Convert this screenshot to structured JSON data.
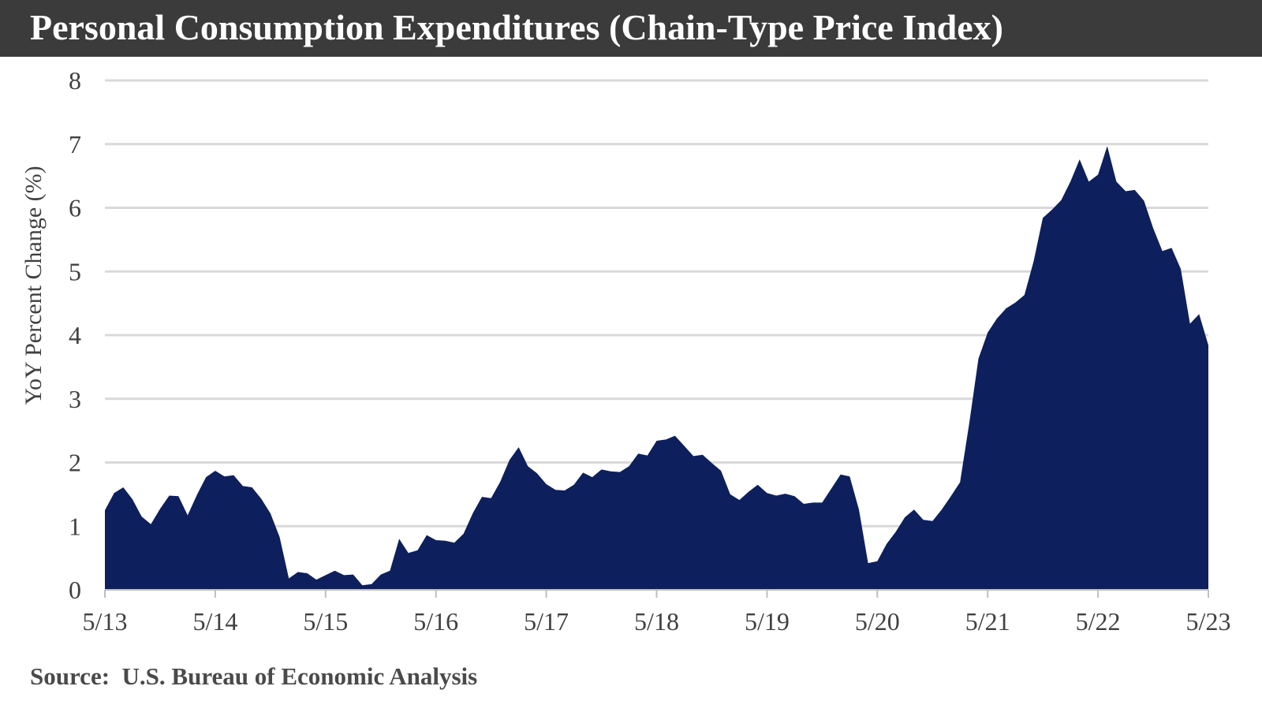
{
  "header": {
    "title": "Personal Consumption Expenditures (Chain-Type Price Index)"
  },
  "footer": {
    "source": "Source:  U.S. Bureau of Economic Analysis"
  },
  "colors": {
    "title_bar": "#3b3b3b",
    "area_fill": "#0d1f5c",
    "grid": "#d9d9d9",
    "text": "#404040"
  },
  "chart_data": {
    "type": "area",
    "title": "Personal Consumption Expenditures (Chain-Type Price Index)",
    "xlabel": "",
    "ylabel": "YoY Percent Change (%)",
    "ylim": [
      0,
      8
    ],
    "yticks": [
      0,
      1,
      2,
      3,
      4,
      5,
      6,
      7,
      8
    ],
    "xlim": [
      "2013-05",
      "2023-05"
    ],
    "xticks": [
      "5/13",
      "5/14",
      "5/15",
      "5/16",
      "5/17",
      "5/18",
      "5/19",
      "5/20",
      "5/21",
      "5/22",
      "5/23"
    ],
    "grid": true,
    "legend": "none",
    "series": [
      {
        "x": [
          "2013-05",
          "2013-06",
          "2013-07",
          "2013-08",
          "2013-09",
          "2013-10",
          "2013-11",
          "2013-12",
          "2014-01",
          "2014-02",
          "2014-03",
          "2014-04",
          "2014-05",
          "2014-06",
          "2014-07",
          "2014-08",
          "2014-09",
          "2014-10",
          "2014-11",
          "2014-12",
          "2015-01",
          "2015-02",
          "2015-03",
          "2015-04",
          "2015-05",
          "2015-06",
          "2015-07",
          "2015-08",
          "2015-09",
          "2015-10",
          "2015-11",
          "2015-12",
          "2016-01",
          "2016-02",
          "2016-03",
          "2016-04",
          "2016-05",
          "2016-06",
          "2016-07",
          "2016-08",
          "2016-09",
          "2016-10",
          "2016-11",
          "2016-12",
          "2017-01",
          "2017-02",
          "2017-03",
          "2017-04",
          "2017-05",
          "2017-06",
          "2017-07",
          "2017-08",
          "2017-09",
          "2017-10",
          "2017-11",
          "2017-12",
          "2018-01",
          "2018-02",
          "2018-03",
          "2018-04",
          "2018-05",
          "2018-06",
          "2018-07",
          "2018-08",
          "2018-09",
          "2018-10",
          "2018-11",
          "2018-12",
          "2019-01",
          "2019-02",
          "2019-03",
          "2019-04",
          "2019-05",
          "2019-06",
          "2019-07",
          "2019-08",
          "2019-09",
          "2019-10",
          "2019-11",
          "2019-12",
          "2020-01",
          "2020-02",
          "2020-03",
          "2020-04",
          "2020-05",
          "2020-06",
          "2020-07",
          "2020-08",
          "2020-09",
          "2020-10",
          "2020-11",
          "2020-12",
          "2021-01",
          "2021-02",
          "2021-03",
          "2021-04",
          "2021-05",
          "2021-06",
          "2021-07",
          "2021-08",
          "2021-09",
          "2021-10",
          "2021-11",
          "2021-12",
          "2022-01",
          "2022-02",
          "2022-03",
          "2022-04",
          "2022-05",
          "2022-06",
          "2022-07",
          "2022-08",
          "2022-09",
          "2022-10",
          "2022-11",
          "2022-12",
          "2023-01",
          "2023-02",
          "2023-03",
          "2023-04",
          "2023-05"
        ],
        "values": [
          1.25,
          1.52,
          1.61,
          1.42,
          1.15,
          1.03,
          1.27,
          1.48,
          1.47,
          1.17,
          1.49,
          1.77,
          1.87,
          1.78,
          1.8,
          1.63,
          1.61,
          1.43,
          1.2,
          0.83,
          0.18,
          0.28,
          0.26,
          0.16,
          0.23,
          0.3,
          0.23,
          0.24,
          0.07,
          0.09,
          0.24,
          0.3,
          0.8,
          0.58,
          0.62,
          0.86,
          0.78,
          0.77,
          0.74,
          0.88,
          1.2,
          1.46,
          1.44,
          1.7,
          2.04,
          2.24,
          1.94,
          1.83,
          1.66,
          1.57,
          1.56,
          1.65,
          1.84,
          1.77,
          1.89,
          1.86,
          1.85,
          1.94,
          2.14,
          2.11,
          2.34,
          2.36,
          2.42,
          2.26,
          2.1,
          2.12,
          1.99,
          1.87,
          1.5,
          1.41,
          1.54,
          1.65,
          1.52,
          1.48,
          1.51,
          1.47,
          1.35,
          1.37,
          1.37,
          1.59,
          1.81,
          1.78,
          1.26,
          0.42,
          0.45,
          0.72,
          0.91,
          1.14,
          1.26,
          1.1,
          1.08,
          1.26,
          1.47,
          1.69,
          2.62,
          3.63,
          4.04,
          4.26,
          4.42,
          4.51,
          4.63,
          5.16,
          5.84,
          5.97,
          6.12,
          6.41,
          6.76,
          6.41,
          6.52,
          6.97,
          6.41,
          6.26,
          6.28,
          6.11,
          5.68,
          5.32,
          5.37,
          5.04,
          4.18,
          4.33,
          3.84
        ]
      }
    ]
  }
}
